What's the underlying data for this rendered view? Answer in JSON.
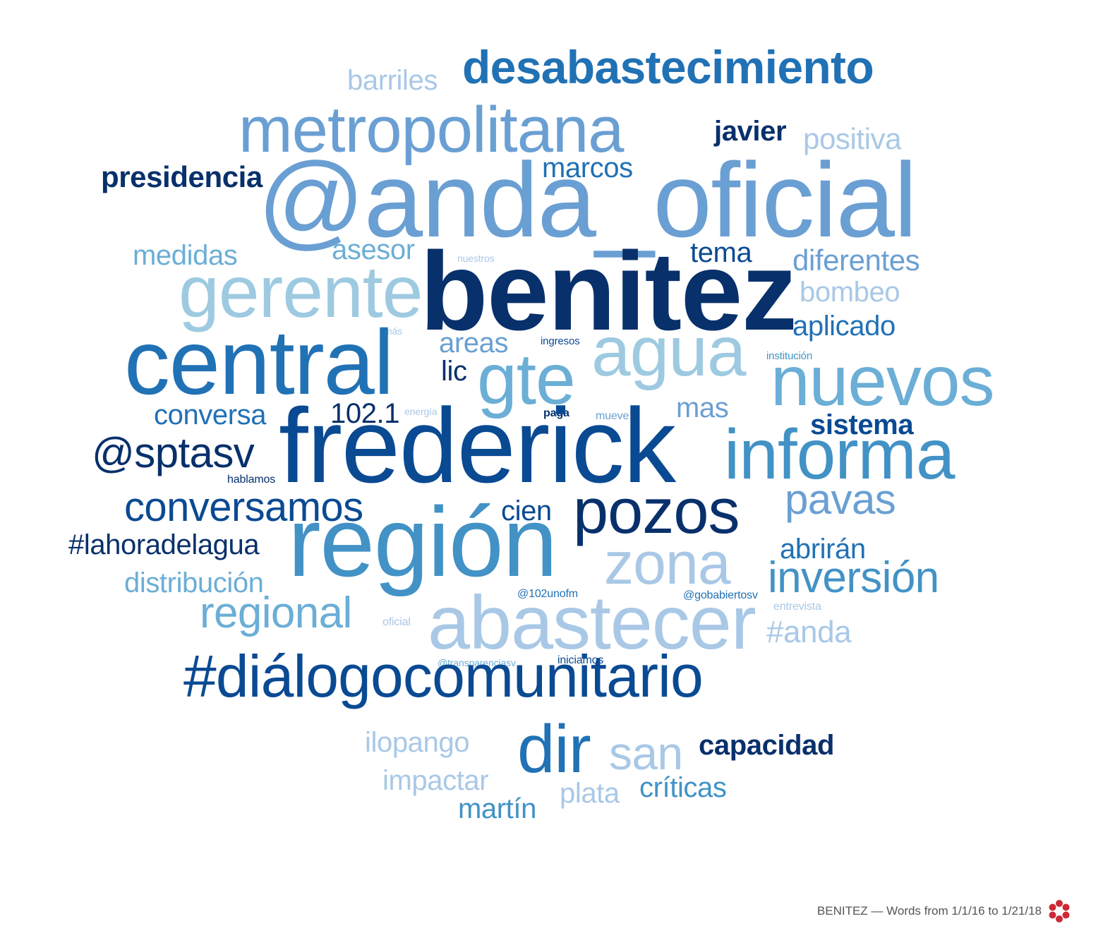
{
  "words": [
    {
      "text": "desabastecimiento",
      "color": "c2"
    },
    {
      "text": "barriles",
      "color": "c7"
    },
    {
      "text": "metropolitana",
      "color": "c4"
    },
    {
      "text": "javier",
      "color": "c0"
    },
    {
      "text": "positiva",
      "color": "c7"
    },
    {
      "text": "presidencia",
      "color": "c0"
    },
    {
      "text": "marcos",
      "color": "c2"
    },
    {
      "text": "@anda_oficial",
      "color": "c4"
    },
    {
      "text": "medidas",
      "color": "c5"
    },
    {
      "text": "asesor",
      "color": "c5"
    },
    {
      "text": "nuestros",
      "color": "c7"
    },
    {
      "text": "tema",
      "color": "c1"
    },
    {
      "text": "diferentes",
      "color": "c4"
    },
    {
      "text": "gerente",
      "color": "c6"
    },
    {
      "text": "benitez",
      "color": "c0"
    },
    {
      "text": "bombeo",
      "color": "c7"
    },
    {
      "text": "más",
      "color": "c7"
    },
    {
      "text": "aplicado",
      "color": "c2"
    },
    {
      "text": "central",
      "color": "c2"
    },
    {
      "text": "areas",
      "color": "c4"
    },
    {
      "text": "ingresos",
      "color": "c1"
    },
    {
      "text": "agua",
      "color": "c6"
    },
    {
      "text": "institución",
      "color": "c3"
    },
    {
      "text": "lic",
      "color": "c0"
    },
    {
      "text": "gte",
      "color": "c5"
    },
    {
      "text": "nuevos",
      "color": "c5"
    },
    {
      "text": "conversa",
      "color": "c2"
    },
    {
      "text": "102.1",
      "color": "c0"
    },
    {
      "text": "energía",
      "color": "c7"
    },
    {
      "text": "paga",
      "color": "c0"
    },
    {
      "text": "mueve",
      "color": "c4"
    },
    {
      "text": "mas",
      "color": "c4"
    },
    {
      "text": "sistema",
      "color": "c1"
    },
    {
      "text": "@sptasv",
      "color": "c0"
    },
    {
      "text": "frederick",
      "color": "c1"
    },
    {
      "text": "informa",
      "color": "c3"
    },
    {
      "text": "hablamos",
      "color": "c0"
    },
    {
      "text": "conversamos",
      "color": "c1"
    },
    {
      "text": "cien",
      "color": "c1"
    },
    {
      "text": "pozos",
      "color": "c0"
    },
    {
      "text": "pavas",
      "color": "c4"
    },
    {
      "text": "#lahoradelagua",
      "color": "c0"
    },
    {
      "text": "región",
      "color": "c3"
    },
    {
      "text": "zona",
      "color": "c7"
    },
    {
      "text": "abrirán",
      "color": "c2"
    },
    {
      "text": "distribución",
      "color": "c5"
    },
    {
      "text": "inversión",
      "color": "c3"
    },
    {
      "text": "@102unofm",
      "color": "c2"
    },
    {
      "text": "@gobabiertosv",
      "color": "c2"
    },
    {
      "text": "regional",
      "color": "c5"
    },
    {
      "text": "abastecer",
      "color": "c7"
    },
    {
      "text": "oficial",
      "color": "c7"
    },
    {
      "text": "entrevista",
      "color": "c7"
    },
    {
      "text": "#anda",
      "color": "c7"
    },
    {
      "text": "@transparenciasv",
      "color": "c5"
    },
    {
      "text": "iniciamos",
      "color": "c1"
    },
    {
      "text": "#diálogocomunitario",
      "color": "c1"
    },
    {
      "text": "ilopango",
      "color": "c7"
    },
    {
      "text": "dir",
      "color": "c2"
    },
    {
      "text": "san",
      "color": "c7"
    },
    {
      "text": "capacidad",
      "color": "c0"
    },
    {
      "text": "impactar",
      "color": "c7"
    },
    {
      "text": "plata",
      "color": "c7"
    },
    {
      "text": "críticas",
      "color": "c3"
    },
    {
      "text": "martín",
      "color": "c3"
    }
  ],
  "footer": {
    "caption": "BENITEZ — Words from 1/1/16 to 1/21/18",
    "logo_icon": "red-flower-logo-icon",
    "logo_color": "#cc2a36"
  }
}
